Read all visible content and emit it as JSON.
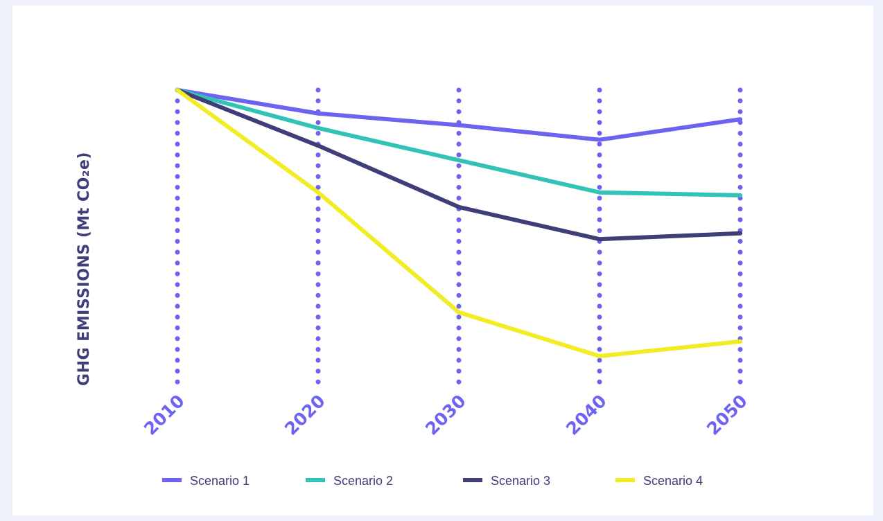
{
  "chart_data": {
    "type": "line",
    "title": "",
    "xlabel": "",
    "ylabel": "GHG EMISSIONS (Mt CO₂e)",
    "x": [
      "2010",
      "2020",
      "2030",
      "2040",
      "2050"
    ],
    "ylim": [
      0,
      100
    ],
    "y_ticks_shown": false,
    "grid": "vertical dotted lines at each x tick",
    "legend_position": "bottom",
    "series": [
      {
        "name": "Scenario 1",
        "color": "#6c63f0",
        "values": [
          100,
          92,
          88,
          83,
          90
        ]
      },
      {
        "name": "Scenario 2",
        "color": "#33c2b6",
        "values": [
          100,
          87,
          76,
          65,
          64
        ]
      },
      {
        "name": "Scenario 3",
        "color": "#3f3e78",
        "values": [
          100,
          81,
          60,
          49,
          51
        ]
      },
      {
        "name": "Scenario 4",
        "color": "#f1ec23",
        "values": [
          100,
          65,
          24,
          9,
          14
        ]
      }
    ],
    "colors": {
      "ylabel": "#3f3e78",
      "tick_labels": "#6c63f0",
      "grid_dots": "#6c63f0"
    }
  }
}
